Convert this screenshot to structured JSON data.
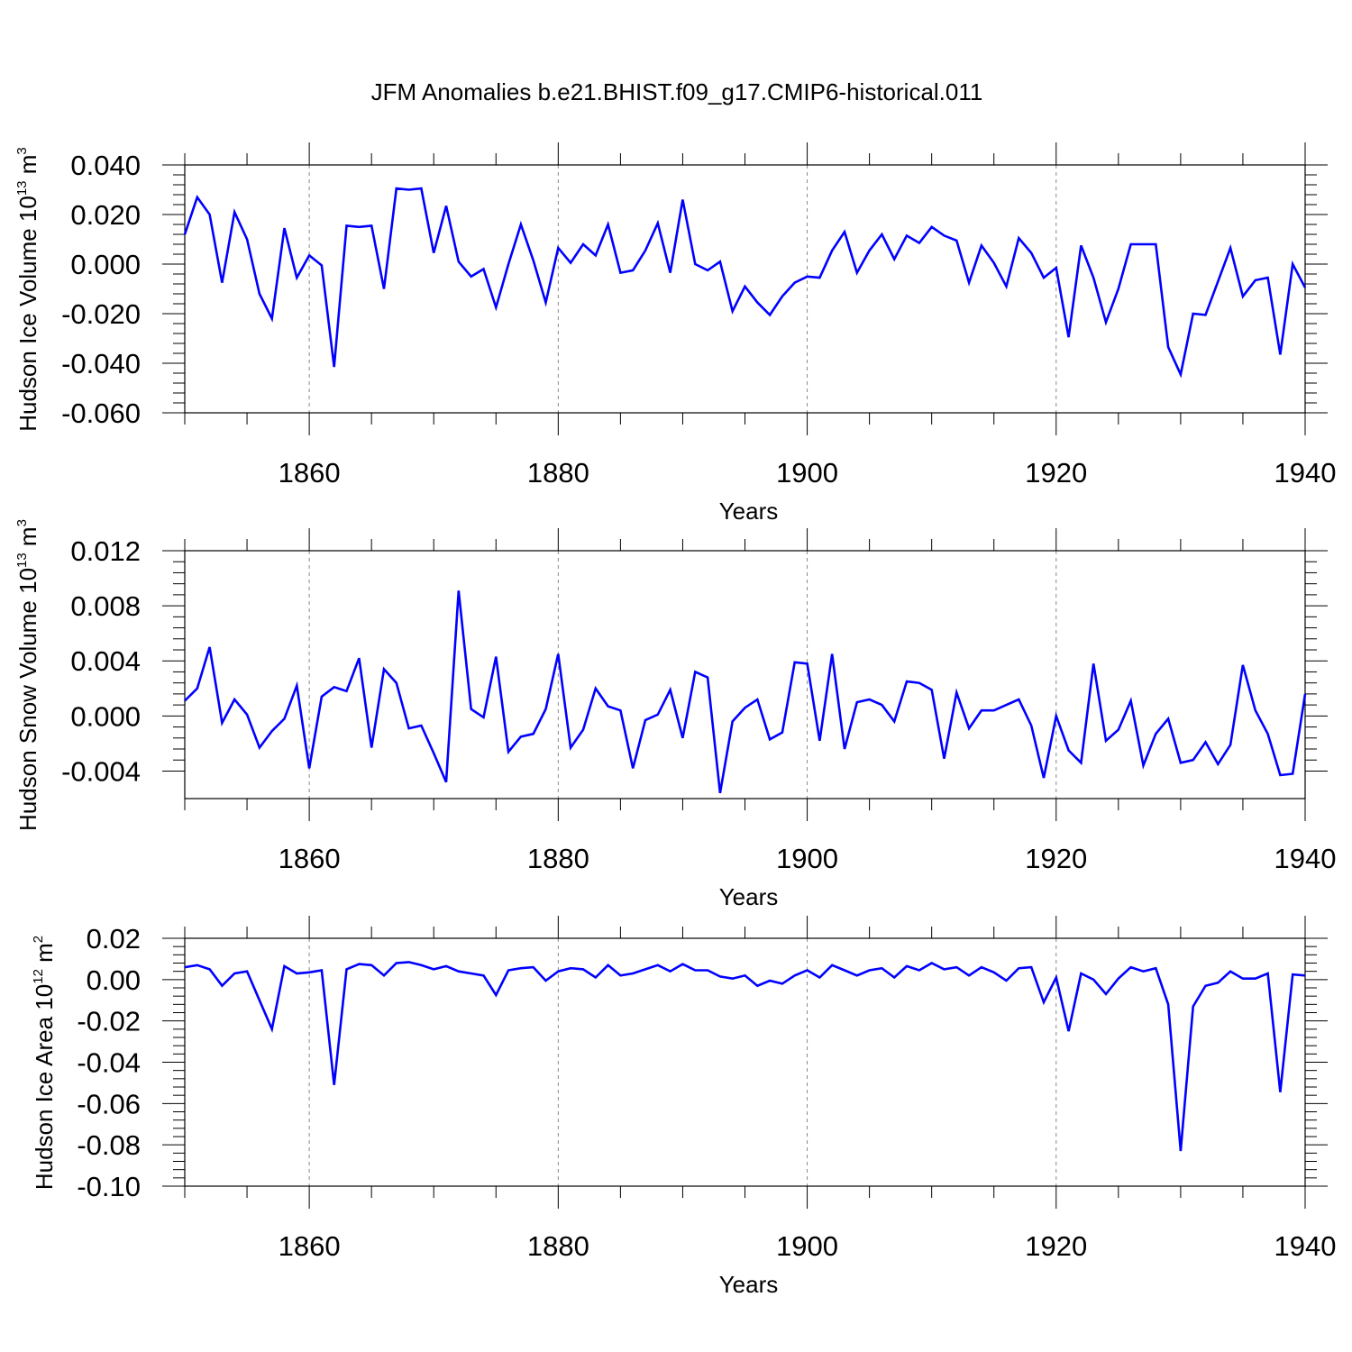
{
  "title": "JFM Anomalies b.e21.BHIST.f09_g17.CMIP6-historical.011",
  "colors": {
    "line": "#0000ff",
    "axis": "#000000",
    "grid": "#888888"
  },
  "chart_data": [
    {
      "type": "line",
      "xlabel": "Years",
      "ylabel": {
        "main": "Hudson Ice Volume 10",
        "sup": "13",
        "unit": " m",
        "unit_sup": "3"
      },
      "xlim": [
        1850,
        1940
      ],
      "ylim": [
        -0.06,
        0.04
      ],
      "xticks": [
        1860,
        1880,
        1900,
        1920,
        1940
      ],
      "xtick_labels": [
        "1860",
        "1880",
        "1900",
        "1920",
        "1940"
      ],
      "yticks": [
        -0.06,
        -0.04,
        -0.02,
        0.0,
        0.02,
        0.04
      ],
      "ytick_labels": [
        "-0.060",
        "-0.040",
        "-0.020",
        "0.000",
        "0.020",
        "0.040"
      ],
      "grid_x": true,
      "x": [
        1850,
        1851,
        1852,
        1853,
        1854,
        1855,
        1856,
        1857,
        1858,
        1859,
        1860,
        1861,
        1862,
        1863,
        1864,
        1865,
        1866,
        1867,
        1868,
        1869,
        1870,
        1871,
        1872,
        1873,
        1874,
        1875,
        1876,
        1877,
        1878,
        1879,
        1880,
        1881,
        1882,
        1883,
        1884,
        1885,
        1886,
        1887,
        1888,
        1889,
        1890,
        1891,
        1892,
        1893,
        1894,
        1895,
        1896,
        1897,
        1898,
        1899,
        1900,
        1901,
        1902,
        1903,
        1904,
        1905,
        1906,
        1907,
        1908,
        1909,
        1910,
        1911,
        1912,
        1913,
        1914,
        1915,
        1916,
        1917,
        1918,
        1919,
        1920,
        1921,
        1922,
        1923,
        1924,
        1925,
        1926,
        1927,
        1928,
        1929,
        1930,
        1931,
        1932,
        1933,
        1934,
        1935,
        1936,
        1937,
        1938,
        1939,
        1940
      ],
      "values": [
        0.012,
        0.027,
        0.02,
        -0.0075,
        0.021,
        0.01,
        -0.012,
        -0.022,
        0.0145,
        -0.0055,
        0.0035,
        -0.0005,
        -0.0415,
        0.0155,
        0.015,
        0.0155,
        -0.01,
        0.0305,
        0.03,
        0.0305,
        0.0045,
        0.0235,
        0.001,
        -0.005,
        -0.002,
        -0.0175,
        0.0,
        0.016,
        0.0015,
        -0.0155,
        0.0065,
        0.0005,
        0.008,
        0.0035,
        0.016,
        -0.0035,
        -0.0025,
        0.0055,
        0.0165,
        -0.0035,
        0.026,
        0.0,
        -0.0025,
        0.001,
        -0.019,
        -0.009,
        -0.0155,
        -0.0205,
        -0.013,
        -0.0075,
        -0.005,
        -0.0055,
        0.0055,
        0.013,
        -0.0035,
        0.0055,
        0.012,
        0.002,
        0.0115,
        0.0085,
        0.015,
        0.0115,
        0.0095,
        -0.0075,
        0.0075,
        0.0005,
        -0.009,
        0.0105,
        0.0045,
        -0.0055,
        -0.0015,
        -0.0295,
        0.0075,
        -0.0055,
        -0.0235,
        -0.01,
        0.008,
        0.008,
        0.008,
        -0.0335,
        -0.0445,
        -0.02,
        -0.0205,
        -0.007,
        0.0065,
        -0.013,
        -0.0065,
        -0.0055,
        -0.0365,
        0.0,
        -0.0095
      ]
    },
    {
      "type": "line",
      "xlabel": "Years",
      "ylabel": {
        "main": "Hudson Snow Volume 10",
        "sup": "13",
        "unit": " m",
        "unit_sup": "3"
      },
      "xlim": [
        1850,
        1940
      ],
      "ylim": [
        -0.006,
        0.012
      ],
      "xticks": [
        1860,
        1880,
        1900,
        1920,
        1940
      ],
      "xtick_labels": [
        "1860",
        "1880",
        "1900",
        "1920",
        "1940"
      ],
      "yticks": [
        -0.004,
        0.0,
        0.004,
        0.008,
        0.012
      ],
      "ytick_labels": [
        "-0.004",
        "0.000",
        "0.004",
        "0.008",
        "0.012"
      ],
      "grid_x": true,
      "x": [
        1850,
        1851,
        1852,
        1853,
        1854,
        1855,
        1856,
        1857,
        1858,
        1859,
        1860,
        1861,
        1862,
        1863,
        1864,
        1865,
        1866,
        1867,
        1868,
        1869,
        1870,
        1871,
        1872,
        1873,
        1874,
        1875,
        1876,
        1877,
        1878,
        1879,
        1880,
        1881,
        1882,
        1883,
        1884,
        1885,
        1886,
        1887,
        1888,
        1889,
        1890,
        1891,
        1892,
        1893,
        1894,
        1895,
        1896,
        1897,
        1898,
        1899,
        1900,
        1901,
        1902,
        1903,
        1904,
        1905,
        1906,
        1907,
        1908,
        1909,
        1910,
        1911,
        1912,
        1913,
        1914,
        1915,
        1916,
        1917,
        1918,
        1919,
        1920,
        1921,
        1922,
        1923,
        1924,
        1925,
        1926,
        1927,
        1928,
        1929,
        1930,
        1931,
        1932,
        1933,
        1934,
        1935,
        1936,
        1937,
        1938,
        1939,
        1940
      ],
      "values": [
        0.0011,
        0.002,
        0.005,
        -0.0005,
        0.0012,
        0.0001,
        -0.0023,
        -0.0011,
        -0.0002,
        0.0022,
        -0.0038,
        0.0014,
        0.0021,
        0.0018,
        0.0042,
        -0.0023,
        0.0034,
        0.0024,
        -0.0009,
        -0.0007,
        -0.0027,
        -0.0048,
        0.0091,
        0.0005,
        -0.0001,
        0.0043,
        -0.0026,
        -0.0015,
        -0.0013,
        0.0005,
        0.0045,
        -0.0023,
        -0.001,
        0.002,
        0.0007,
        0.0004,
        -0.0038,
        -0.0003,
        0.0001,
        0.0019,
        -0.0016,
        0.0032,
        0.0028,
        -0.0056,
        -0.0004,
        0.0006,
        0.0012,
        -0.0017,
        -0.0012,
        0.0039,
        0.0038,
        -0.0018,
        0.0045,
        -0.0024,
        0.001,
        0.0012,
        0.0008,
        -0.0004,
        0.0025,
        0.0024,
        0.0019,
        -0.0031,
        0.0017,
        -0.0009,
        0.0004,
        0.0004,
        0.0008,
        0.0012,
        -0.0007,
        -0.0045,
        0.0,
        -0.0025,
        -0.0034,
        0.0038,
        -0.0018,
        -0.001,
        0.0011,
        -0.0036,
        -0.0013,
        -0.0002,
        -0.0034,
        -0.0032,
        -0.0019,
        -0.0035,
        -0.0021,
        0.0037,
        0.0004,
        -0.0013,
        -0.0043,
        -0.0042,
        0.0016
      ]
    },
    {
      "type": "line",
      "xlabel": "Years",
      "ylabel": {
        "main": "Hudson Ice Area 10",
        "sup": "12",
        "unit": " m",
        "unit_sup": "2"
      },
      "xlim": [
        1850,
        1940
      ],
      "ylim": [
        -0.1,
        0.02
      ],
      "xticks": [
        1860,
        1880,
        1900,
        1920,
        1940
      ],
      "xtick_labels": [
        "1860",
        "1880",
        "1900",
        "1920",
        "1940"
      ],
      "yticks": [
        -0.1,
        -0.08,
        -0.06,
        -0.04,
        -0.02,
        0.0,
        0.02
      ],
      "ytick_labels": [
        "-0.10",
        "-0.08",
        "-0.06",
        "-0.04",
        "-0.02",
        "0.00",
        "0.02"
      ],
      "grid_x": true,
      "x": [
        1850,
        1851,
        1852,
        1853,
        1854,
        1855,
        1856,
        1857,
        1858,
        1859,
        1860,
        1861,
        1862,
        1863,
        1864,
        1865,
        1866,
        1867,
        1868,
        1869,
        1870,
        1871,
        1872,
        1873,
        1874,
        1875,
        1876,
        1877,
        1878,
        1879,
        1880,
        1881,
        1882,
        1883,
        1884,
        1885,
        1886,
        1887,
        1888,
        1889,
        1890,
        1891,
        1892,
        1893,
        1894,
        1895,
        1896,
        1897,
        1898,
        1899,
        1900,
        1901,
        1902,
        1903,
        1904,
        1905,
        1906,
        1907,
        1908,
        1909,
        1910,
        1911,
        1912,
        1913,
        1914,
        1915,
        1916,
        1917,
        1918,
        1919,
        1920,
        1921,
        1922,
        1923,
        1924,
        1925,
        1926,
        1927,
        1928,
        1929,
        1930,
        1931,
        1932,
        1933,
        1934,
        1935,
        1936,
        1937,
        1938,
        1939,
        1940
      ],
      "values": [
        0.006,
        0.007,
        0.005,
        -0.003,
        0.003,
        0.004,
        -0.01,
        -0.024,
        0.0065,
        0.003,
        0.0035,
        0.0045,
        -0.051,
        0.005,
        0.0075,
        0.007,
        0.002,
        0.008,
        0.0085,
        0.007,
        0.005,
        0.0065,
        0.004,
        0.003,
        0.002,
        -0.0075,
        0.0045,
        0.0055,
        0.006,
        -0.0005,
        0.004,
        0.0055,
        0.005,
        0.001,
        0.007,
        0.002,
        0.003,
        0.005,
        0.007,
        0.004,
        0.0075,
        0.0045,
        0.0045,
        0.0015,
        0.0005,
        0.002,
        -0.003,
        -0.0005,
        -0.002,
        0.002,
        0.0045,
        0.001,
        0.007,
        0.0045,
        0.002,
        0.0045,
        0.0055,
        0.001,
        0.0065,
        0.0045,
        0.008,
        0.005,
        0.006,
        0.002,
        0.006,
        0.0035,
        -0.0005,
        0.0055,
        0.006,
        -0.011,
        0.001,
        -0.025,
        0.003,
        0.0,
        -0.007,
        0.0005,
        0.006,
        0.004,
        0.0055,
        -0.012,
        -0.083,
        -0.013,
        -0.003,
        -0.0015,
        0.004,
        0.0005,
        0.0005,
        0.003,
        -0.0545,
        0.0025,
        0.002
      ]
    }
  ]
}
